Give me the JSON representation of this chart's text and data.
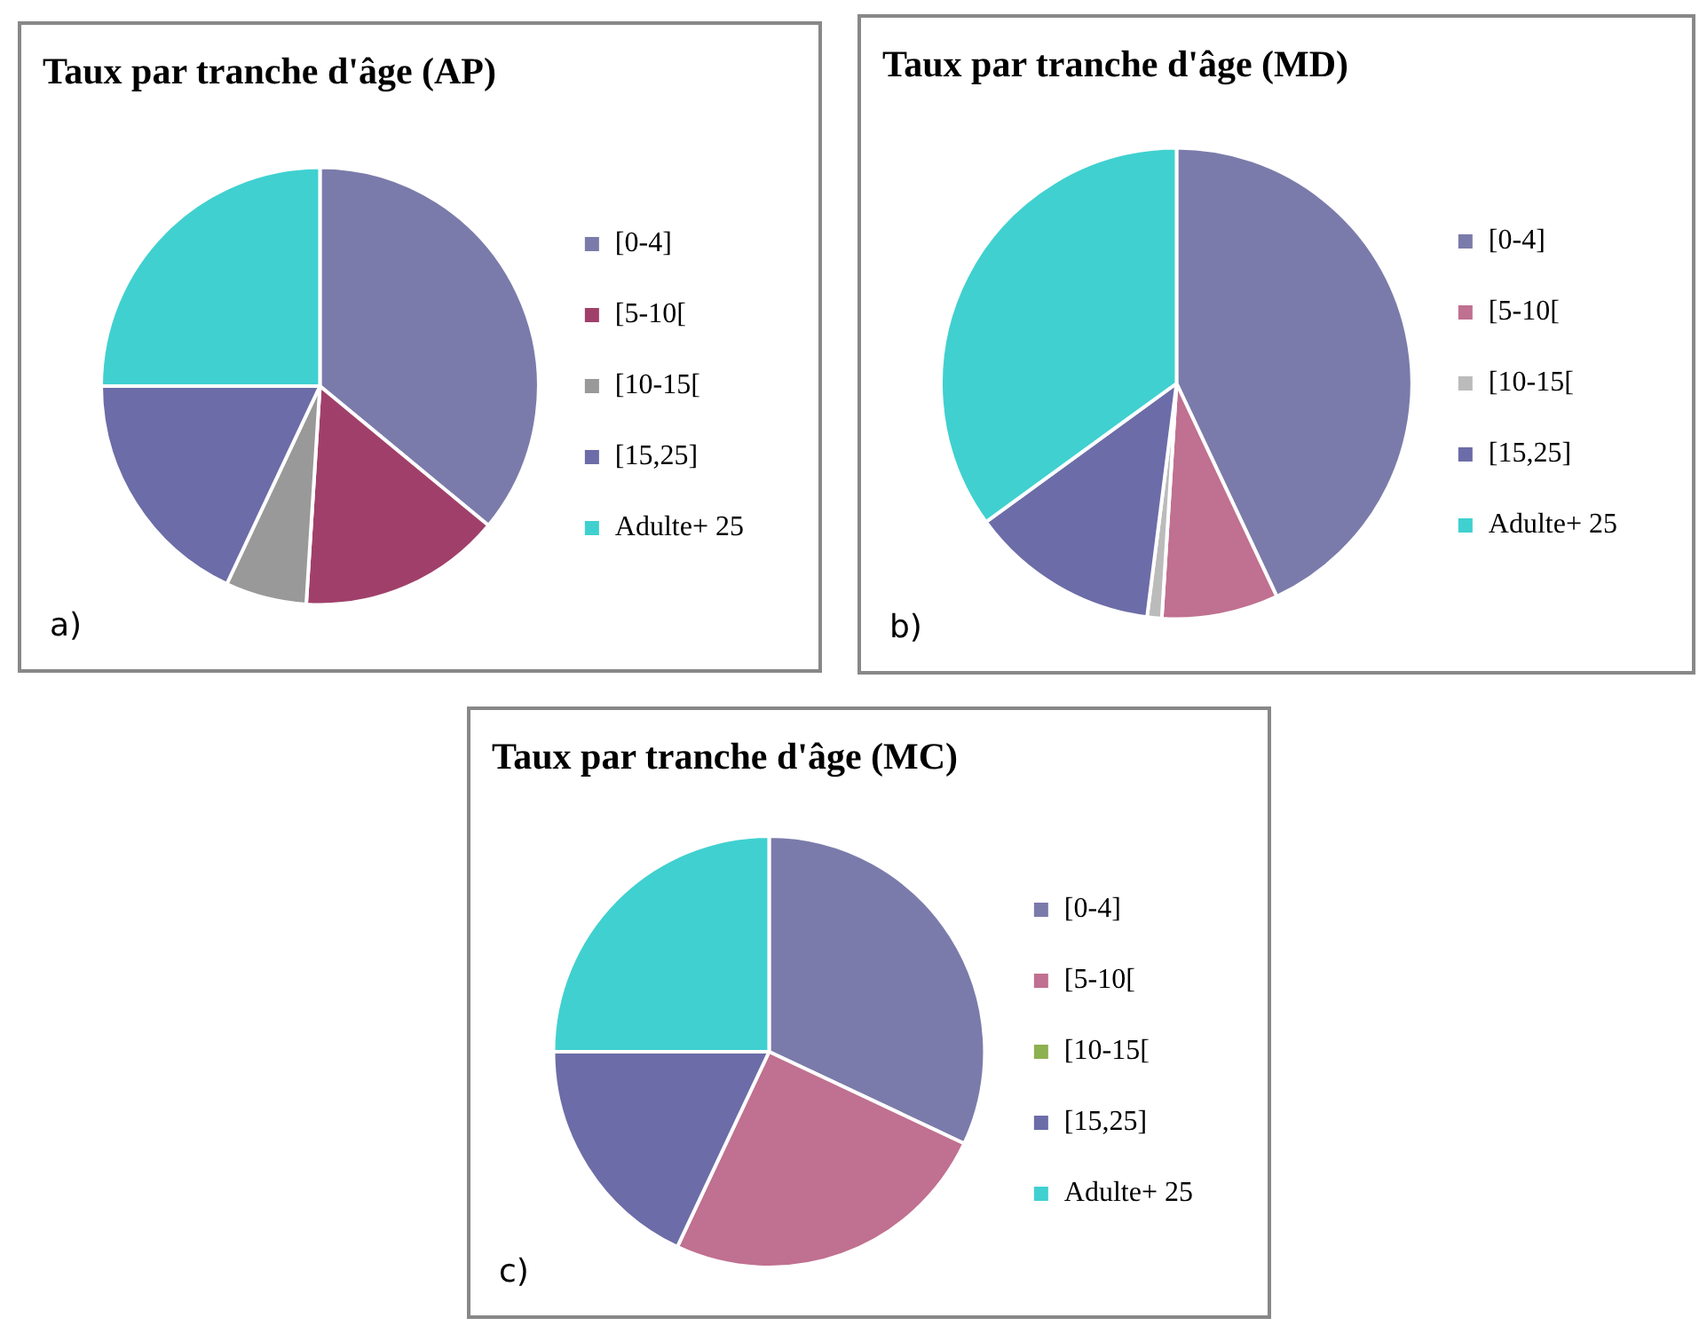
{
  "chart_data": [
    {
      "type": "pie",
      "title": "Taux par tranche d'âge (AP)",
      "categories": [
        "[0-4]",
        "[5-10[",
        "[10-15[",
        "[15,25]",
        "Adulte+ 25"
      ],
      "values": [
        36,
        15,
        6,
        18,
        25
      ],
      "colors": [
        "#7b7bab",
        "#a0406a",
        "#999999",
        "#6c6ca8",
        "#40d0d0"
      ],
      "legend": "right",
      "annotations": [
        "a)"
      ]
    },
    {
      "type": "pie",
      "title": "Taux par tranche d'âge (MD)",
      "categories": [
        "[0-4]",
        "[5-10[",
        "[10-15[",
        "[15,25]",
        "Adulte+ 25"
      ],
      "values": [
        43,
        8,
        1,
        13,
        35
      ],
      "colors": [
        "#7b7bab",
        "#c07090",
        "#bbbbbb",
        "#6c6ca8",
        "#40d0d0"
      ],
      "legend": "right",
      "annotations": [
        "b)"
      ]
    },
    {
      "type": "pie",
      "title": "Taux par tranche d'âge (MC)",
      "categories": [
        "[0-4]",
        "[5-10[",
        "[10-15[",
        "[15,25]",
        "Adulte+ 25"
      ],
      "values": [
        32,
        25,
        0,
        18,
        25
      ],
      "colors": [
        "#7b7bab",
        "#c07090",
        "#8db050",
        "#6c6ca8",
        "#40d0d0"
      ],
      "legend": "right",
      "annotations": [
        "c)"
      ]
    }
  ]
}
